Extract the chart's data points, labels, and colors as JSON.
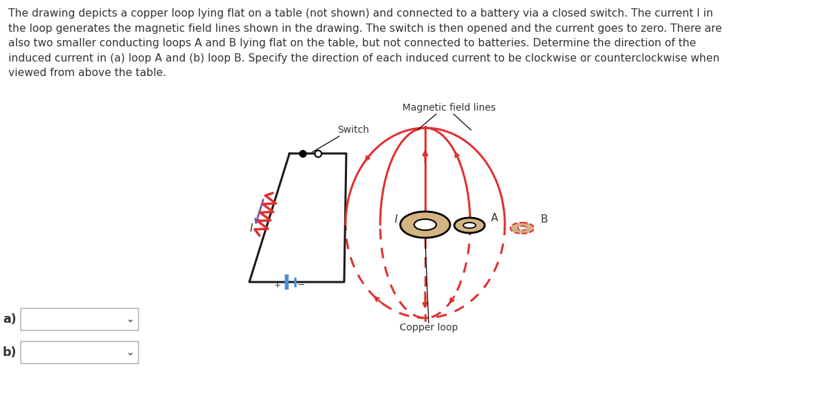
{
  "description_text": "The drawing depicts a copper loop lying flat on a table (not shown) and connected to a battery via a closed switch. The current I in\nthe loop generates the magnetic field lines shown in the drawing. The switch is then opened and the current goes to zero. There are\nalso two smaller conducting loops A and B lying flat on the table, but not connected to batteries. Determine the direction of the\ninduced current in (a) loop A and (b) loop B. Specify the direction of each induced current to be clockwise or counterclockwise when\nviewed from above the table.",
  "label_magnetic": "Magnetic field lines",
  "label_switch": "Switch",
  "label_copper": "Copper loop",
  "label_A": "A",
  "label_B": "B",
  "label_I_circuit": "I",
  "label_I_loop": "I",
  "label_a": "a)",
  "label_b": "b)",
  "bg_color": "#ffffff",
  "text_color": "#333333",
  "circuit_color": "#1a1a1a",
  "field_solid": "#e03030",
  "field_dashed": "#e03030",
  "resistor_color": "#e03030",
  "battery_color": "#4a90d9",
  "current_arrow_color": "#7755bb",
  "loop_fill": "#d4b483",
  "box_edge": "#b8b8b8"
}
